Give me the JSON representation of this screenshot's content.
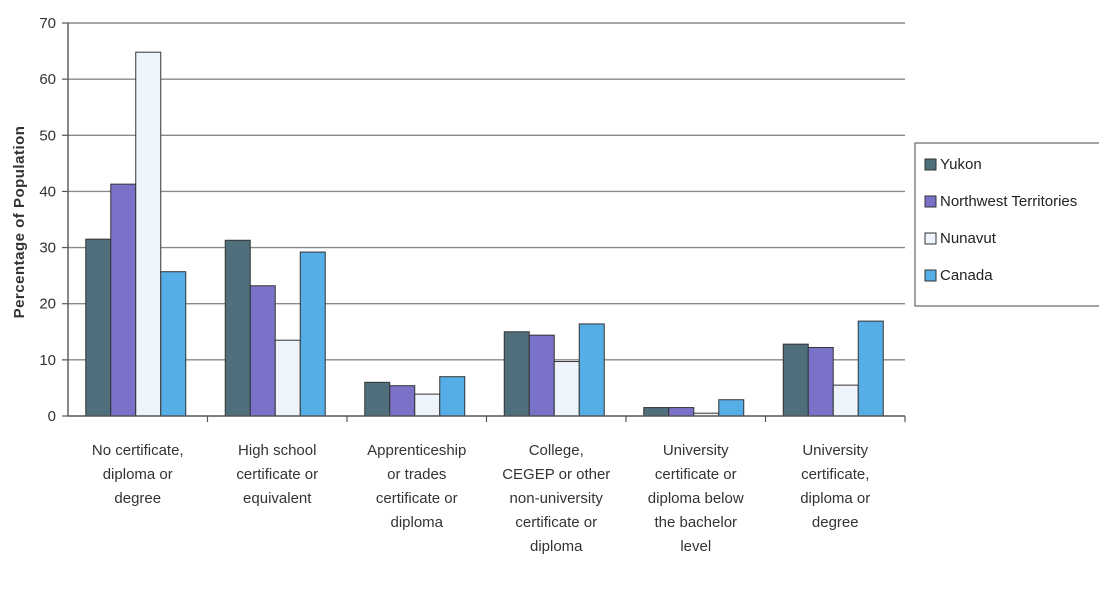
{
  "chart_data": {
    "type": "bar",
    "title": "",
    "xlabel": "",
    "ylabel": "Percentage of Population",
    "ylim": [
      0,
      70
    ],
    "yticks": [
      0,
      10,
      20,
      30,
      40,
      50,
      60,
      70
    ],
    "grid": true,
    "legend_position": "right",
    "categories": [
      [
        "No certificate,",
        "diploma or",
        "degree"
      ],
      [
        "High school",
        "certificate or",
        "equivalent"
      ],
      [
        "Apprenticeship",
        "or trades",
        "certificate or",
        "diploma"
      ],
      [
        "College,",
        "CEGEP or other",
        "non-university",
        "certificate or",
        "diploma"
      ],
      [
        "University",
        "certificate or",
        "diploma below",
        "the bachelor",
        "level"
      ],
      [
        "University",
        "certificate,",
        "diploma or",
        "degree"
      ]
    ],
    "series": [
      {
        "name": "Yukon",
        "color": "#4f6f7d",
        "values": [
          31.5,
          31.3,
          6.0,
          15.0,
          1.5,
          12.8
        ]
      },
      {
        "name": "Northwest Territories",
        "color": "#7a72c9",
        "values": [
          41.3,
          23.2,
          5.4,
          14.4,
          1.5,
          12.2
        ]
      },
      {
        "name": "Nunavut",
        "color": "#eef4fb",
        "values": [
          64.8,
          13.5,
          3.9,
          9.7,
          0.5,
          5.5
        ]
      },
      {
        "name": "Canada",
        "color": "#56aee6",
        "values": [
          25.7,
          29.2,
          7.0,
          16.4,
          2.9,
          16.9
        ]
      }
    ]
  }
}
